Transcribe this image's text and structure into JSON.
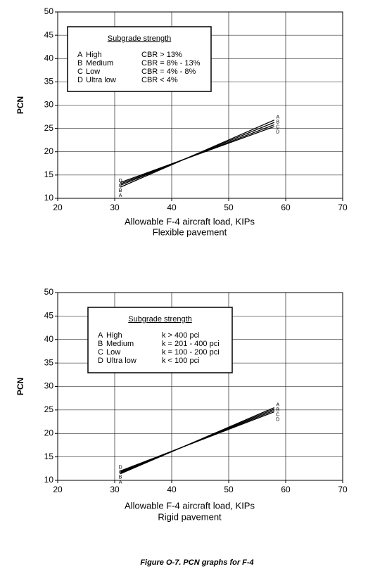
{
  "chart_data": [
    {
      "type": "line",
      "ylabel": "PCN",
      "xlabel": "Allowable F-4 aircraft load, KIPs",
      "subtitle": "Flexible pavement",
      "legend_title": "Subgrade strength",
      "xlim": [
        20,
        70
      ],
      "xticks": [
        20,
        30,
        40,
        50,
        60,
        70
      ],
      "ylim": [
        10,
        50
      ],
      "yticks": [
        10,
        15,
        20,
        25,
        30,
        35,
        40,
        45,
        50
      ],
      "grid": true,
      "x": [
        31,
        58
      ],
      "series": [
        {
          "name": "A",
          "label": "High",
          "criterion": "CBR > 13%",
          "color": "#000000",
          "values": [
            12.4,
            26.8
          ]
        },
        {
          "name": "B",
          "label": "Medium",
          "criterion": "CBR = 8% - 13%",
          "color": "#000000",
          "values": [
            12.8,
            26.3
          ]
        },
        {
          "name": "C",
          "label": "Low",
          "criterion": "CBR = 4% - 8%",
          "color": "#000000",
          "values": [
            13.1,
            25.8
          ]
        },
        {
          "name": "D",
          "label": "Ultra low",
          "criterion": "CBR < 4%",
          "color": "#000000",
          "values": [
            13.4,
            25.4
          ]
        }
      ]
    },
    {
      "type": "line",
      "ylabel": "PCN",
      "xlabel": "Allowable F-4 aircraft load, KIPs",
      "subtitle": "Rigid pavement",
      "legend_title": "Subgrade strength",
      "xlim": [
        20,
        70
      ],
      "xticks": [
        20,
        30,
        40,
        50,
        60,
        70
      ],
      "ylim": [
        10,
        50
      ],
      "yticks": [
        10,
        15,
        20,
        25,
        30,
        35,
        40,
        45,
        50
      ],
      "grid": true,
      "x": [
        31,
        58
      ],
      "series": [
        {
          "name": "A",
          "label": "High",
          "criterion": "k > 400 pci",
          "color": "#000000",
          "values": [
            11.4,
            25.5
          ]
        },
        {
          "name": "B",
          "label": "Medium",
          "criterion": "k = 201 - 400 pci",
          "color": "#000000",
          "values": [
            11.6,
            25.2
          ]
        },
        {
          "name": "C",
          "label": "Low",
          "criterion": "k = 100 - 200 pci",
          "color": "#000000",
          "values": [
            11.8,
            24.9
          ]
        },
        {
          "name": "D",
          "label": "Ultra low",
          "criterion": "k < 100 pci",
          "color": "#000000",
          "values": [
            12.0,
            24.6
          ]
        }
      ]
    }
  ],
  "figure_caption": "Figure O-7.  PCN graphs for F-4"
}
